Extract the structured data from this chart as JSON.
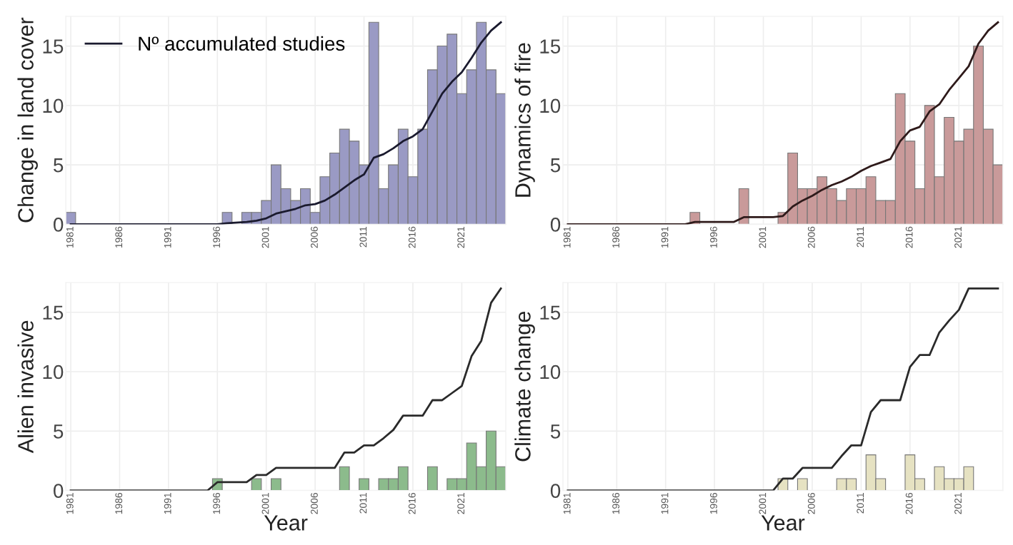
{
  "chart_data": [
    {
      "type": "bar",
      "ylabel": "Change in land cover",
      "xlim": [
        1980.5,
        2025.5
      ],
      "ylim": [
        0,
        17.5
      ],
      "xticks": [
        1981,
        1986,
        1991,
        1996,
        2001,
        2006,
        2011,
        2016,
        2021
      ],
      "yticks": [
        0,
        5,
        10,
        15
      ],
      "grid": true,
      "legend": "top left",
      "series": [
        {
          "color": "#9a9ac4",
          "x": [
            1981,
            1997,
            1999,
            2000,
            2001,
            2002,
            2003,
            2004,
            2005,
            2006,
            2007,
            2008,
            2009,
            2010,
            2011,
            2012,
            2013,
            2014,
            2015,
            2016,
            2017,
            2018,
            2019,
            2020,
            2021,
            2022,
            2023,
            2024,
            2025
          ],
          "values": [
            1,
            1,
            1,
            1,
            2,
            5,
            3,
            2,
            3,
            1,
            4,
            6,
            8,
            7,
            5,
            17,
            3,
            5,
            8,
            4,
            8,
            13,
            15,
            16,
            11,
            13,
            17,
            13,
            11
          ]
        },
        {
          "type": "line",
          "name": "Nº accumulated studies",
          "color": "#1a1a2e",
          "x": [
            1981,
            1996,
            1997,
            1999,
            2000,
            2001,
            2002,
            2003,
            2004,
            2005,
            2006,
            2007,
            2008,
            2009,
            2010,
            2011,
            2012,
            2013,
            2014,
            2015,
            2016,
            2017,
            2018,
            2019,
            2020,
            2021,
            2022,
            2023,
            2024,
            2025
          ],
          "values": [
            0,
            0,
            0.1,
            0.2,
            0.3,
            0.5,
            0.9,
            1.1,
            1.3,
            1.6,
            1.7,
            2.0,
            2.5,
            3.1,
            3.7,
            4.2,
            5.6,
            5.9,
            6.4,
            7.0,
            7.4,
            8.0,
            9.5,
            11.0,
            12.0,
            12.8,
            14.0,
            15.3,
            16.3,
            17
          ]
        }
      ]
    },
    {
      "type": "bar",
      "ylabel": "Dynamics of fire",
      "xlim": [
        1980.5,
        2025.5
      ],
      "ylim": [
        0,
        17.5
      ],
      "xticks": [
        1981,
        1986,
        1991,
        1996,
        2001,
        2006,
        2011,
        2016,
        2021
      ],
      "yticks": [
        0,
        5,
        10,
        15
      ],
      "grid": true,
      "series": [
        {
          "color": "#c99a9a",
          "x": [
            1994,
            1999,
            2003,
            2004,
            2005,
            2006,
            2007,
            2008,
            2009,
            2010,
            2011,
            2012,
            2013,
            2014,
            2015,
            2016,
            2017,
            2018,
            2019,
            2020,
            2021,
            2022,
            2023,
            2024,
            2025
          ],
          "values": [
            1,
            3,
            1,
            6,
            3,
            3,
            4,
            3,
            2,
            3,
            3,
            4,
            2,
            2,
            11,
            7,
            3,
            10,
            4,
            9,
            7,
            8,
            15,
            8,
            5
          ]
        },
        {
          "type": "line",
          "color": "#2e1a1a",
          "x": [
            1981,
            1993,
            1994,
            1998,
            1999,
            2002,
            2003,
            2004,
            2005,
            2006,
            2007,
            2008,
            2009,
            2010,
            2011,
            2012,
            2013,
            2014,
            2015,
            2016,
            2017,
            2018,
            2019,
            2020,
            2021,
            2022,
            2023,
            2024,
            2025
          ],
          "values": [
            0,
            0,
            0.2,
            0.2,
            0.6,
            0.6,
            0.7,
            1.5,
            2.0,
            2.4,
            2.9,
            3.3,
            3.6,
            4.0,
            4.5,
            4.9,
            5.2,
            5.5,
            7.0,
            7.9,
            8.2,
            9.5,
            10.1,
            11.3,
            12.3,
            13.3,
            15.2,
            16.3,
            17
          ]
        }
      ]
    },
    {
      "type": "bar",
      "ylabel": "Alien invasive",
      "xlabel": "Year",
      "xlim": [
        1980.5,
        2025.5
      ],
      "ylim": [
        0,
        17.5
      ],
      "xticks": [
        1981,
        1986,
        1991,
        1996,
        2001,
        2006,
        2011,
        2016,
        2021
      ],
      "yticks": [
        0,
        5,
        10,
        15
      ],
      "grid": true,
      "series": [
        {
          "color": "#8cbb8c",
          "x": [
            1996,
            2000,
            2002,
            2009,
            2011,
            2013,
            2014,
            2015,
            2018,
            2020,
            2021,
            2022,
            2023,
            2024,
            2025
          ],
          "values": [
            1,
            1,
            1,
            2,
            1,
            1,
            1,
            2,
            2,
            1,
            1,
            4,
            2,
            5,
            2
          ]
        },
        {
          "type": "line",
          "color": "#2a2a2a",
          "x": [
            1981,
            1995,
            1996,
            1999,
            2000,
            2001,
            2002,
            2008,
            2009,
            2010,
            2011,
            2012,
            2013,
            2014,
            2015,
            2017,
            2018,
            2019,
            2020,
            2021,
            2022,
            2023,
            2024,
            2025
          ],
          "values": [
            0,
            0,
            0.7,
            0.7,
            1.3,
            1.3,
            1.9,
            1.9,
            3.2,
            3.2,
            3.8,
            3.8,
            4.4,
            5.1,
            6.3,
            6.3,
            7.6,
            7.6,
            8.2,
            8.8,
            11.3,
            12.6,
            15.8,
            17
          ]
        }
      ]
    },
    {
      "type": "bar",
      "ylabel": "Climate change",
      "xlabel": "Year",
      "xlim": [
        1980.5,
        2025.5
      ],
      "ylim": [
        0,
        17.5
      ],
      "xticks": [
        1981,
        1986,
        1991,
        1996,
        2001,
        2006,
        2011,
        2016,
        2021
      ],
      "yticks": [
        0,
        5,
        10,
        15
      ],
      "grid": true,
      "series": [
        {
          "color": "#e6e2c2",
          "x": [
            2003,
            2005,
            2009,
            2010,
            2012,
            2013,
            2016,
            2017,
            2019,
            2020,
            2021,
            2022
          ],
          "values": [
            1,
            1,
            1,
            1,
            3,
            1,
            3,
            1,
            2,
            1,
            1,
            2
          ]
        },
        {
          "type": "line",
          "color": "#2a2a2a",
          "x": [
            1981,
            2002,
            2003,
            2004,
            2005,
            2008,
            2009,
            2010,
            2011,
            2012,
            2013,
            2015,
            2016,
            2017,
            2018,
            2019,
            2020,
            2021,
            2022,
            2025
          ],
          "values": [
            0,
            0,
            1.0,
            1.0,
            1.9,
            1.9,
            2.9,
            3.8,
            3.8,
            6.6,
            7.6,
            7.6,
            10.4,
            11.4,
            11.4,
            13.3,
            14.3,
            15.2,
            17,
            17
          ]
        }
      ]
    }
  ]
}
